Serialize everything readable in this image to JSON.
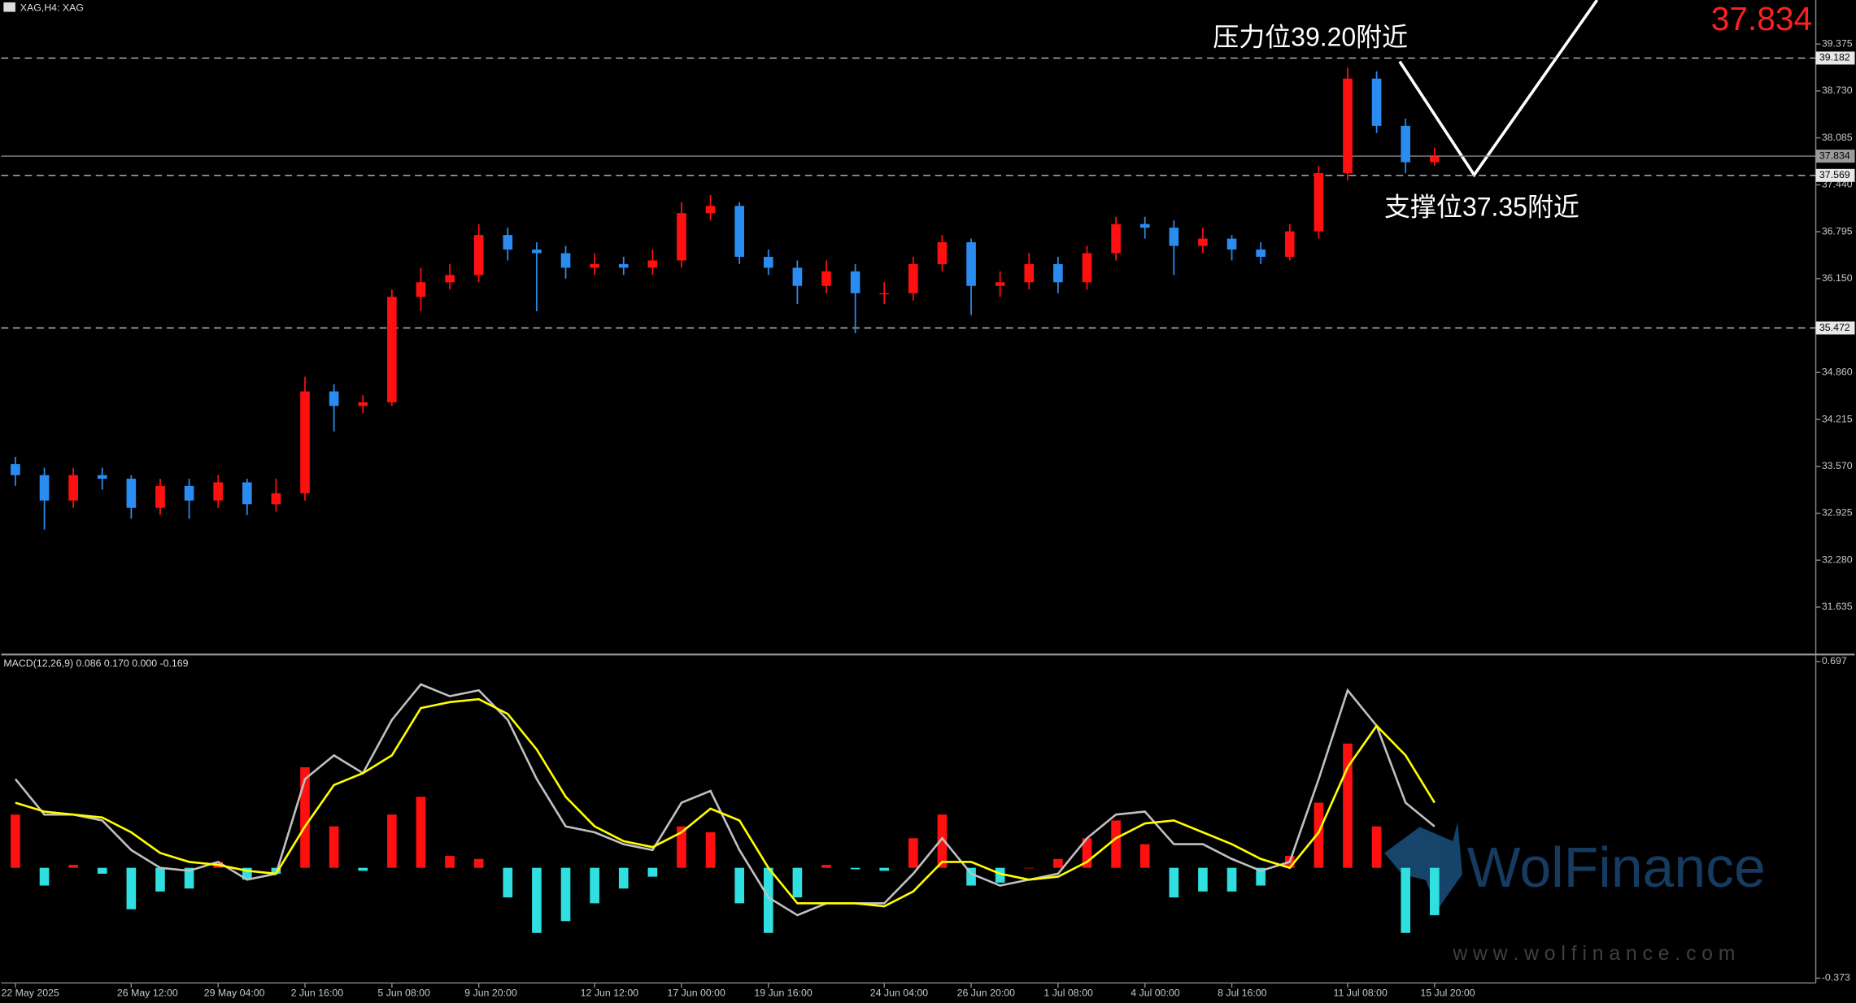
{
  "chart_data": [
    {
      "type": "candlestick",
      "title": "XAG,H4: XAG",
      "categories": [
        "22 May 2025",
        null,
        null,
        null,
        "26 May 12:00",
        null,
        null,
        "29 May 04:00",
        null,
        null,
        "2 Jun 16:00",
        null,
        null,
        "5 Jun 08:00",
        null,
        null,
        "9 Jun 20:00",
        null,
        null,
        null,
        "12 Jun 12:00",
        null,
        null,
        "17 Jun 00:00",
        null,
        null,
        "19 Jun 16:00",
        null,
        null,
        null,
        "24 Jun 04:00",
        null,
        null,
        "26 Jun 20:00",
        null,
        null,
        "1 Jul 08:00",
        null,
        null,
        "4 Jul 00:00",
        null,
        null,
        "8 Jul 16:00",
        null,
        null,
        null,
        "11 Jul 08:00",
        null,
        null,
        "15 Jul 20:00"
      ],
      "open": [
        33.6,
        33.45,
        33.1,
        33.45,
        33.4,
        33.0,
        33.3,
        33.1,
        33.35,
        33.05,
        33.2,
        34.6,
        34.4,
        34.45,
        35.9,
        36.1,
        36.2,
        36.75,
        36.55,
        36.5,
        36.3,
        36.35,
        36.3,
        36.4,
        37.05,
        37.15,
        36.45,
        36.3,
        36.05,
        36.25,
        35.95,
        35.95,
        36.35,
        36.65,
        36.05,
        36.1,
        36.35,
        36.1,
        36.5,
        36.9,
        36.85,
        36.6,
        36.7,
        36.55,
        36.45,
        36.8,
        37.6,
        38.9,
        38.25,
        37.75
      ],
      "high": [
        33.7,
        33.55,
        33.55,
        33.55,
        33.45,
        33.4,
        33.4,
        33.45,
        33.4,
        33.4,
        34.8,
        34.7,
        34.55,
        36.0,
        36.3,
        36.35,
        36.9,
        36.85,
        36.65,
        36.6,
        36.5,
        36.45,
        36.55,
        37.2,
        37.3,
        37.2,
        36.55,
        36.4,
        36.4,
        36.35,
        36.1,
        36.45,
        36.75,
        36.7,
        36.25,
        36.5,
        36.45,
        36.6,
        37.0,
        37.0,
        36.95,
        36.85,
        36.75,
        36.65,
        36.9,
        37.7,
        39.05,
        39.0,
        38.35,
        37.95
      ],
      "low": [
        33.3,
        32.7,
        33.0,
        33.25,
        32.85,
        32.9,
        32.85,
        33.0,
        32.9,
        32.95,
        33.1,
        34.05,
        34.3,
        34.4,
        35.7,
        36.0,
        36.1,
        36.4,
        35.7,
        36.15,
        36.2,
        36.2,
        36.2,
        36.3,
        36.95,
        36.35,
        36.2,
        35.8,
        35.95,
        35.4,
        35.8,
        35.85,
        36.25,
        35.65,
        35.9,
        36.0,
        35.95,
        36.0,
        36.4,
        36.7,
        36.2,
        36.5,
        36.4,
        36.35,
        36.4,
        36.7,
        37.5,
        38.15,
        37.6,
        37.7
      ],
      "close": [
        33.45,
        33.1,
        33.45,
        33.4,
        33.0,
        33.3,
        33.1,
        33.35,
        33.05,
        33.2,
        34.6,
        34.4,
        34.45,
        35.9,
        36.1,
        36.2,
        36.75,
        36.55,
        36.5,
        36.3,
        36.35,
        36.3,
        36.4,
        37.05,
        37.15,
        36.45,
        36.3,
        36.05,
        36.25,
        35.95,
        35.95,
        36.35,
        36.65,
        36.05,
        36.1,
        36.35,
        36.1,
        36.5,
        36.9,
        36.85,
        36.6,
        36.7,
        36.55,
        36.45,
        36.8,
        37.6,
        38.9,
        38.25,
        37.75,
        37.83
      ],
      "up_color": "#ff1010",
      "down_color": "#2a8cf0",
      "ylim": [
        31.0,
        39.98
      ],
      "yticks": [
        39.375,
        {
          "value": 38.73,
          "label": "38.730"
        },
        38.085,
        {
          "value": 37.44,
          "label": "37.440"
        },
        36.795,
        {
          "value": 36.15,
          "label": "36.150"
        },
        {
          "value": 34.86,
          "label": "34.860"
        },
        34.215,
        {
          "value": 33.57,
          "label": "33.570"
        },
        32.925,
        {
          "value": 32.28,
          "label": "32.280"
        },
        31.635
      ],
      "current_price": 37.834,
      "current_price_color": "#ff2020",
      "levels": [
        39.182,
        37.569,
        35.472
      ],
      "annotations": [
        "压力位39.20附近",
        "支撑位37.35附近"
      ]
    },
    {
      "type": "macd",
      "title": "MACD(12,26,9) 0.086 0.170 0.000 -0.169",
      "histogram": [
        0.18,
        -0.06,
        0.01,
        -0.02,
        -0.14,
        -0.08,
        -0.07,
        0.02,
        -0.04,
        -0.02,
        0.34,
        0.14,
        -0.01,
        0.18,
        0.24,
        0.04,
        0.03,
        -0.1,
        -0.22,
        -0.18,
        -0.12,
        -0.07,
        -0.03,
        0.14,
        0.12,
        -0.12,
        -0.22,
        -0.1,
        0.01,
        -0.005,
        -0.01,
        0.1,
        0.18,
        -0.06,
        -0.05,
        0.0,
        0.03,
        0.1,
        0.16,
        0.08,
        -0.1,
        -0.08,
        -0.08,
        -0.06,
        0.04,
        0.22,
        0.42,
        0.14,
        -0.22,
        -0.16
      ],
      "macd": [
        0.3,
        0.18,
        0.18,
        0.16,
        0.06,
        0,
        -0.01,
        0.02,
        -0.04,
        -0.02,
        0.3,
        0.38,
        0.32,
        0.5,
        0.62,
        0.58,
        0.6,
        0.5,
        0.3,
        0.14,
        0.12,
        0.08,
        0.06,
        0.22,
        0.26,
        0.06,
        -0.1,
        -0.16,
        -0.12,
        -0.12,
        -0.12,
        -0.02,
        0.1,
        -0.02,
        -0.06,
        -0.04,
        -0.02,
        0.1,
        0.18,
        0.19,
        0.08,
        0.08,
        0.03,
        -0.01,
        0.02,
        0.3,
        0.6,
        0.48,
        0.22,
        0.14
      ],
      "signal": [
        0.22,
        0.19,
        0.18,
        0.17,
        0.12,
        0.05,
        0.02,
        0.01,
        -0.01,
        -0.02,
        0.14,
        0.28,
        0.32,
        0.38,
        0.54,
        0.56,
        0.57,
        0.52,
        0.4,
        0.24,
        0.14,
        0.09,
        0.07,
        0.12,
        0.2,
        0.16,
        0,
        -0.12,
        -0.12,
        -0.12,
        -0.13,
        -0.08,
        0.02,
        0.02,
        -0.02,
        -0.04,
        -0.03,
        0.02,
        0.1,
        0.15,
        0.16,
        0.12,
        0.08,
        0.03,
        0,
        0.12,
        0.34,
        0.48,
        0.38,
        0.22
      ],
      "pos_color": "#ff1010",
      "neg_color": "#30e0e0",
      "macd_color": "#c0c0c0",
      "signal_color": "#ffff00",
      "ylim": [
        -0.389,
        0.713
      ],
      "yticks": [
        0.697,
        -0.373
      ]
    }
  ],
  "watermark": {
    "brand": "WolFinance",
    "url": "w w w . w o l f i n a n c e . c o m"
  }
}
